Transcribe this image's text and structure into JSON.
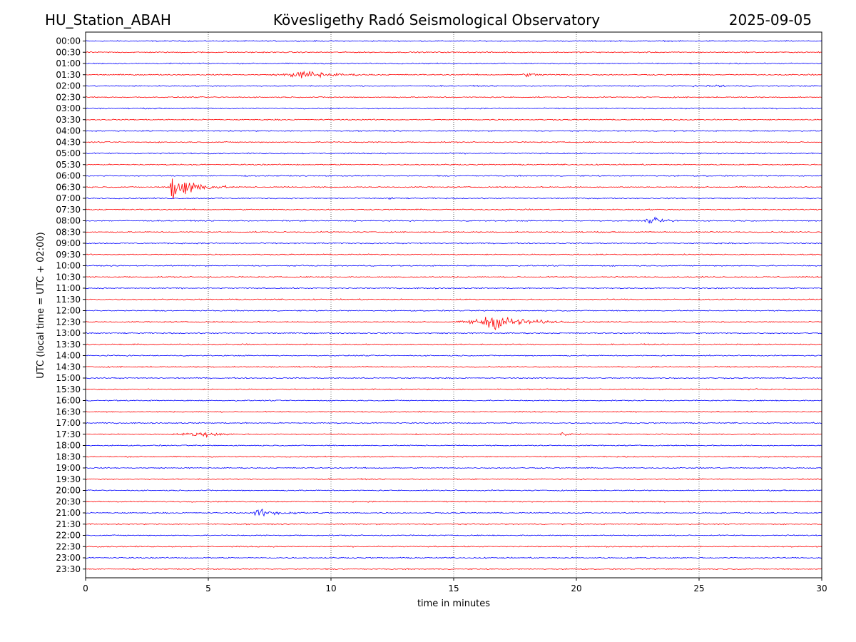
{
  "header": {
    "station": "HU_Station_ABAH",
    "observatory": "Kövesligethy Radó Seismological Observatory",
    "date": "2025-09-05"
  },
  "chart_data": {
    "type": "line",
    "title": "Kövesligethy Radó Seismological Observatory",
    "xlabel": "time in minutes",
    "ylabel": "UTC (local time = UTC + 02:00)",
    "xlim": [
      0,
      30
    ],
    "xticks": [
      0,
      5,
      10,
      15,
      20,
      25,
      30
    ],
    "grid": "vertical dotted lines at x ticks",
    "colors": {
      "even_rows": "#0000ff",
      "odd_rows": "#ff0000",
      "grid": "#000000"
    },
    "rows": [
      "00:00",
      "00:30",
      "01:00",
      "01:30",
      "02:00",
      "02:30",
      "03:00",
      "03:30",
      "04:00",
      "04:30",
      "05:00",
      "05:30",
      "06:00",
      "06:30",
      "07:00",
      "07:30",
      "08:00",
      "08:30",
      "09:00",
      "09:30",
      "10:00",
      "10:30",
      "11:00",
      "11:30",
      "12:00",
      "12:30",
      "13:00",
      "13:30",
      "14:00",
      "14:30",
      "15:00",
      "15:30",
      "16:00",
      "16:30",
      "17:00",
      "17:30",
      "18:00",
      "18:30",
      "19:00",
      "19:30",
      "20:00",
      "20:30",
      "21:00",
      "21:30",
      "22:00",
      "22:30",
      "23:00",
      "23:30"
    ],
    "events": [
      {
        "row": "01:30",
        "start": 7.5,
        "peak": 9.1,
        "end": 12.0,
        "amplitude": 0.5
      },
      {
        "row": "01:30",
        "start": 17.6,
        "peak": 18.0,
        "end": 19.8,
        "amplitude": 0.2
      },
      {
        "row": "02:00",
        "start": 24.2,
        "peak": 25.8,
        "end": 27.8,
        "amplitude": 0.1
      },
      {
        "row": "06:30",
        "start": 3.3,
        "peak": 3.5,
        "end": 6.0,
        "amplitude": 2.4
      },
      {
        "row": "07:00",
        "start": 12.3,
        "peak": 12.4,
        "end": 12.8,
        "amplitude": 0.3
      },
      {
        "row": "08:00",
        "start": 22.6,
        "peak": 23.1,
        "end": 25.0,
        "amplitude": 0.35
      },
      {
        "row": "12:30",
        "start": 15.0,
        "peak": 16.8,
        "end": 20.5,
        "amplitude": 0.9
      },
      {
        "row": "17:30",
        "start": 3.3,
        "peak": 4.9,
        "end": 6.6,
        "amplitude": 0.3
      },
      {
        "row": "17:30",
        "start": 19.2,
        "peak": 19.4,
        "end": 20.6,
        "amplitude": 0.25
      },
      {
        "row": "21:00",
        "start": 6.8,
        "peak": 6.9,
        "end": 10.0,
        "amplitude": 0.5
      }
    ]
  }
}
